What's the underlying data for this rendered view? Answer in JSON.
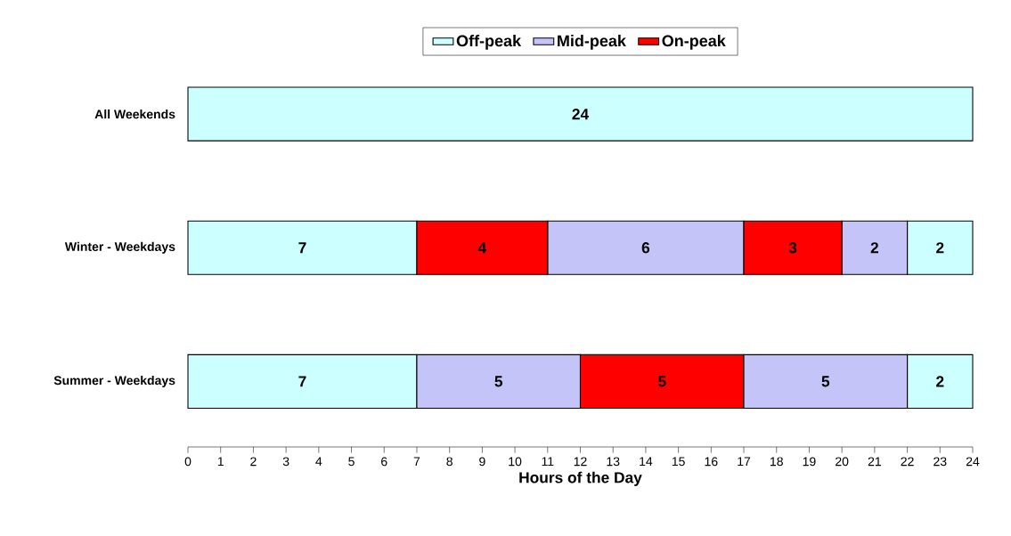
{
  "chart_data": {
    "type": "bar",
    "orientation": "horizontal",
    "xlabel": "Hours of the Day",
    "categories": [
      "All Weekends",
      "Winter - Weekdays",
      "Summer - Weekdays"
    ],
    "series": [
      {
        "name": "Off-peak",
        "color": "#ccffff",
        "values": [
          24,
          7,
          7
        ],
        "base": [
          0,
          0,
          0
        ]
      },
      {
        "name": "Mid-peak",
        "color": "#c4c4f8",
        "values": [
          null,
          6,
          5
        ],
        "base": [
          null,
          11,
          7
        ]
      },
      {
        "name": "On-peak",
        "color": "#ff0000",
        "values": [
          null,
          4,
          5
        ],
        "base": [
          null,
          7,
          12
        ]
      },
      {
        "color": "#ccffff",
        "values": [
          null,
          2,
          2
        ],
        "base": [
          null,
          22,
          22
        ]
      },
      {
        "color": "#c4c4f8",
        "values": [
          null,
          2,
          5
        ],
        "base": [
          null,
          20,
          17
        ]
      },
      {
        "color": "#ff0000",
        "values": [
          null,
          3,
          null
        ],
        "base": [
          null,
          17,
          null
        ]
      }
    ],
    "xlim": [
      0,
      24
    ],
    "xticks": [
      0,
      1,
      2,
      3,
      4,
      5,
      6,
      7,
      8,
      9,
      10,
      11,
      12,
      13,
      14,
      15,
      16,
      17,
      18,
      19,
      20,
      21,
      22,
      23,
      24
    ],
    "data_labels": true,
    "legend": "top",
    "grid": false
  }
}
